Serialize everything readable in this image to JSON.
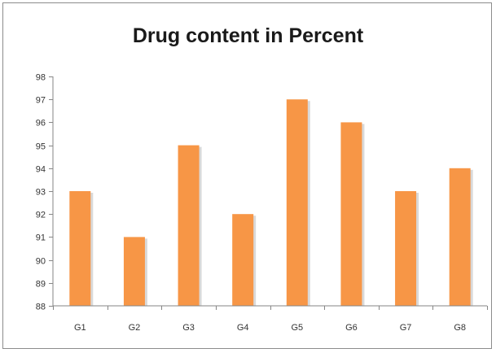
{
  "chart_data": {
    "type": "bar",
    "title": "Drug content in Percent",
    "xlabel": "",
    "ylabel": "",
    "categories": [
      "G1",
      "G2",
      "G3",
      "G4",
      "G5",
      "G6",
      "G7",
      "G8"
    ],
    "values": [
      93,
      91,
      95,
      92,
      97,
      96,
      93,
      94
    ],
    "ylim": [
      88,
      98
    ],
    "yticks": [
      88,
      89,
      90,
      91,
      92,
      93,
      94,
      95,
      96,
      97,
      98
    ],
    "grid": false,
    "legend": "none",
    "bar_color": "#f79646",
    "bar_shadow_color": "#d9d9d9"
  }
}
